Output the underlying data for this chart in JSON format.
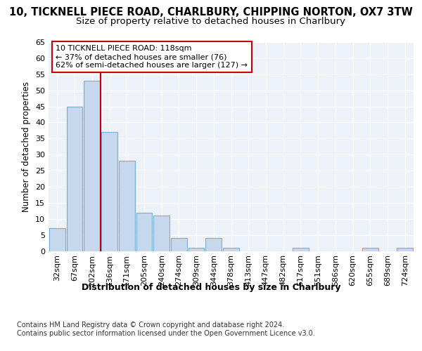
{
  "title1": "10, TICKNELL PIECE ROAD, CHARLBURY, CHIPPING NORTON, OX7 3TW",
  "title2": "Size of property relative to detached houses in Charlbury",
  "xlabel": "Distribution of detached houses by size in Charlbury",
  "ylabel": "Number of detached properties",
  "bar_labels": [
    "32sqm",
    "67sqm",
    "102sqm",
    "136sqm",
    "171sqm",
    "205sqm",
    "240sqm",
    "274sqm",
    "309sqm",
    "344sqm",
    "378sqm",
    "413sqm",
    "447sqm",
    "482sqm",
    "517sqm",
    "551sqm",
    "586sqm",
    "620sqm",
    "655sqm",
    "689sqm",
    "724sqm"
  ],
  "bar_values": [
    7,
    45,
    53,
    37,
    28,
    12,
    11,
    4,
    1,
    4,
    1,
    0,
    0,
    0,
    1,
    0,
    0,
    0,
    1,
    0,
    1
  ],
  "bar_color": "#c5d8ee",
  "bar_edge_color": "#7aadd4",
  "vline_x_index": 2,
  "vline_color": "#cc0000",
  "annotation_line1": "10 TICKNELL PIECE ROAD: 118sqm",
  "annotation_line2": "← 37% of detached houses are smaller (76)",
  "annotation_line3": "62% of semi-detached houses are larger (127) →",
  "annotation_box_color": "#ffffff",
  "annotation_box_edge": "#cc0000",
  "ylim": [
    0,
    65
  ],
  "yticks": [
    0,
    5,
    10,
    15,
    20,
    25,
    30,
    35,
    40,
    45,
    50,
    55,
    60,
    65
  ],
  "footer1": "Contains HM Land Registry data © Crown copyright and database right 2024.",
  "footer2": "Contains public sector information licensed under the Open Government Licence v3.0.",
  "bg_color": "#edf2f9",
  "title1_fontsize": 10.5,
  "title2_fontsize": 9.5,
  "xlabel_fontsize": 9,
  "ylabel_fontsize": 8.5,
  "tick_fontsize": 8,
  "annotation_fontsize": 8,
  "footer_fontsize": 7
}
